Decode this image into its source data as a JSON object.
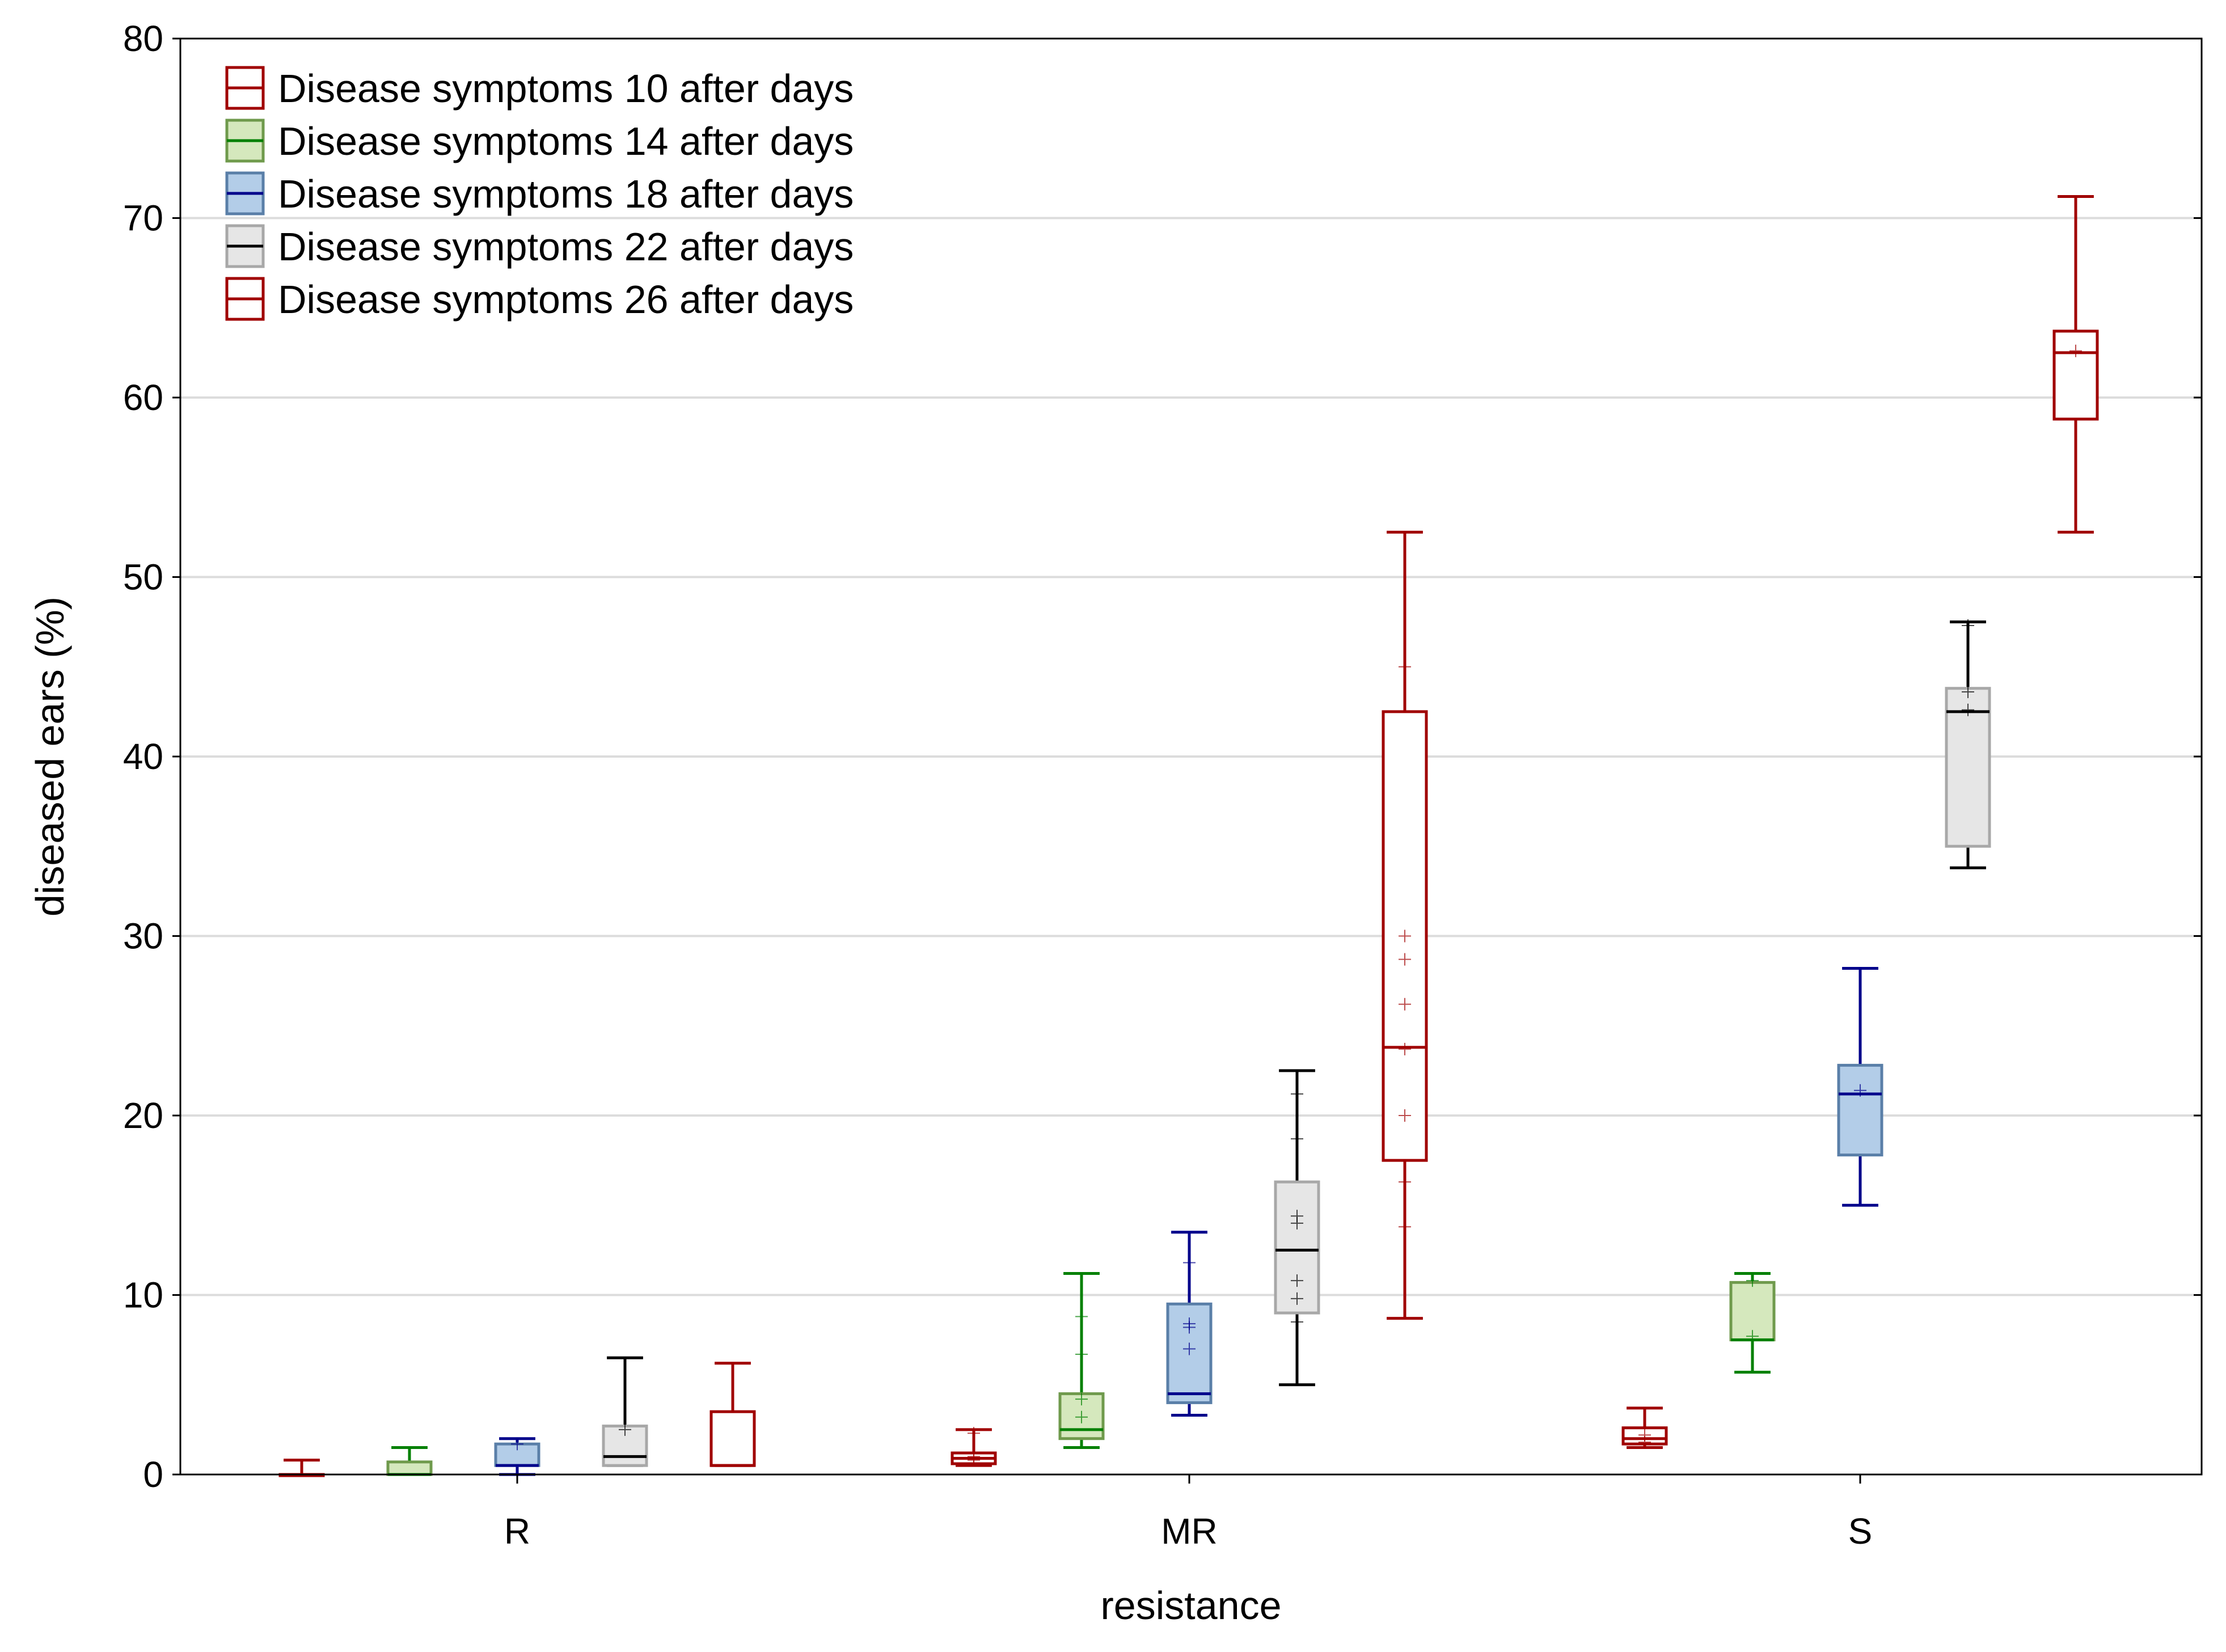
{
  "chart_data": {
    "type": "boxplot",
    "title": "",
    "xlabel": "resistance",
    "ylabel": "diseased ears (%)",
    "ylim": [
      0,
      80
    ],
    "yticks": [
      "0",
      "10",
      "20",
      "30",
      "40",
      "50",
      "60",
      "70",
      "80"
    ],
    "categories": [
      "R",
      "MR",
      "S"
    ],
    "grid": "horizontal",
    "legend_position": "top-left",
    "series": [
      {
        "name": "Disease symptoms 10 after days",
        "stroke": "#a00000",
        "fill": "#ffffff",
        "boxes": [
          {
            "category": "R",
            "min": 0.0,
            "q1": 0.0,
            "median": 0.0,
            "q3": 0.0,
            "max": 0.8,
            "points": []
          },
          {
            "category": "MR",
            "min": 0.5,
            "q1": 0.6,
            "median": 0.9,
            "q3": 1.2,
            "max": 2.5,
            "points": [
              0.8,
              1.0,
              2.3
            ]
          },
          {
            "category": "S",
            "min": 1.5,
            "q1": 1.7,
            "median": 2.0,
            "q3": 2.6,
            "max": 3.7,
            "points": [
              1.8,
              2.2
            ]
          }
        ]
      },
      {
        "name": "Disease symptoms 14 after days",
        "stroke": "#008000",
        "fill": "#d5e8bd",
        "boxes": [
          {
            "category": "R",
            "min": 0.0,
            "q1": 0.0,
            "median": 0.0,
            "q3": 0.7,
            "max": 1.5,
            "points": []
          },
          {
            "category": "MR",
            "min": 1.5,
            "q1": 2.0,
            "median": 2.5,
            "q3": 4.5,
            "max": 11.2,
            "points": [
              3.2,
              4.2,
              6.7,
              8.8
            ]
          },
          {
            "category": "S",
            "min": 5.7,
            "q1": 7.5,
            "median": 7.5,
            "q3": 10.7,
            "max": 11.2,
            "points": [
              7.7,
              10.8
            ]
          }
        ]
      },
      {
        "name": "Disease symptoms 18 after days",
        "stroke": "#00008b",
        "fill": "#b3cde8",
        "boxes": [
          {
            "category": "R",
            "min": 0.0,
            "q1": 0.5,
            "median": 0.5,
            "q3": 1.7,
            "max": 2.0,
            "points": [
              1.7
            ]
          },
          {
            "category": "MR",
            "min": 3.3,
            "q1": 4.0,
            "median": 4.5,
            "q3": 9.5,
            "max": 13.5,
            "points": [
              7.0,
              8.2,
              8.4,
              11.8
            ]
          },
          {
            "category": "S",
            "min": 15.0,
            "q1": 17.8,
            "median": 21.2,
            "q3": 22.8,
            "max": 28.2,
            "points": [
              21.4
            ]
          }
        ]
      },
      {
        "name": "Disease symptoms 22 after days",
        "stroke": "#000000",
        "fill": "#e6e6e6",
        "boxes": [
          {
            "category": "R",
            "min": 0.5,
            "q1": 0.5,
            "median": 1.0,
            "q3": 2.7,
            "max": 6.5,
            "points": [
              2.5
            ]
          },
          {
            "category": "MR",
            "min": 5.0,
            "q1": 9.0,
            "median": 12.5,
            "q3": 16.3,
            "max": 22.5,
            "points": [
              8.5,
              9.8,
              10.8,
              14.0,
              14.4,
              18.7,
              21.2
            ]
          },
          {
            "category": "S",
            "min": 33.8,
            "q1": 35.0,
            "median": 42.5,
            "q3": 43.8,
            "max": 47.5,
            "points": [
              42.6,
              43.6,
              47.3
            ]
          }
        ]
      },
      {
        "name": "Disease symptoms 26 after days",
        "stroke": "#a00000",
        "fill": "#ffffff",
        "boxes": [
          {
            "category": "R",
            "min": 0.5,
            "q1": 0.5,
            "median": 0.5,
            "q3": 3.5,
            "max": 6.2,
            "points": []
          },
          {
            "category": "MR",
            "min": 8.7,
            "q1": 17.5,
            "median": 23.8,
            "q3": 42.5,
            "max": 52.5,
            "points": [
              13.8,
              16.3,
              20.0,
              23.7,
              26.2,
              28.7,
              30.0,
              45.0
            ]
          },
          {
            "category": "S",
            "min": 52.5,
            "q1": 58.8,
            "median": 62.5,
            "q3": 63.7,
            "max": 71.2,
            "points": [
              62.6
            ]
          }
        ]
      }
    ]
  }
}
